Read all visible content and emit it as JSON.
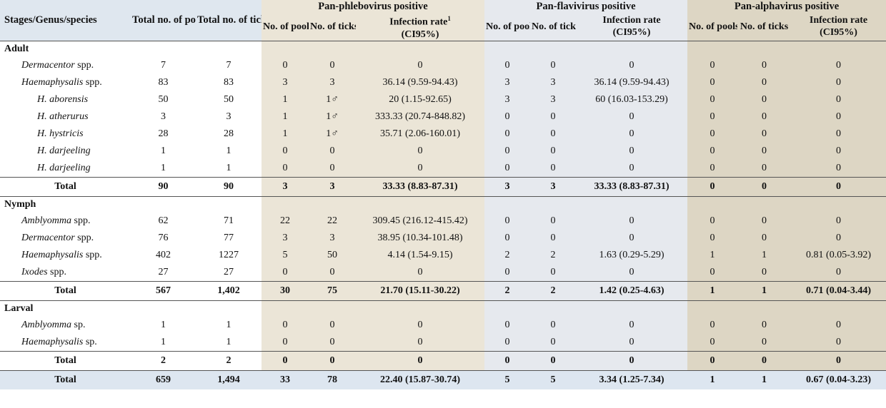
{
  "header": {
    "stage_label": "Stages/Genus/species",
    "total_pools": "Total no. of pools",
    "total_ticks": "Total no. of ticks",
    "groups": [
      {
        "title": "Pan-phlebovirus positive",
        "pools": "No. of pools",
        "ticks": "No. of ticks",
        "rate": "Infection rate",
        "rate_sup": "1",
        "ci": "(CI95%)"
      },
      {
        "title": "Pan-flavivirus positive",
        "pools": "No. of pools",
        "ticks": "No. of ticks",
        "rate": "Infection rate",
        "rate_sup": "",
        "ci": "(CI95%)"
      },
      {
        "title": "Pan-alphavirus positive",
        "pools": "No. of pools",
        "ticks": "No. of ticks",
        "rate": "Infection rate",
        "rate_sup": "",
        "ci": "(CI95%)"
      }
    ]
  },
  "sections": [
    {
      "label": "Adult",
      "rows": [
        {
          "italic": "Dermacentor",
          "plain": " spp.",
          "level": 1,
          "v": [
            "7",
            "7",
            "0",
            "0",
            "0",
            "0",
            "0",
            "0",
            "0",
            "0",
            "0"
          ]
        },
        {
          "italic": "Haemaphysalis",
          "plain": " spp.",
          "level": 1,
          "v": [
            "83",
            "83",
            "3",
            "3",
            "36.14 (9.59-94.43)",
            "3",
            "3",
            "36.14 (9.59-94.43)",
            "0",
            "0",
            "0"
          ]
        },
        {
          "italic": "H. aborensis",
          "plain": "",
          "level": 2,
          "v": [
            "50",
            "50",
            "1",
            "1♂",
            "20 (1.15-92.65)",
            "3",
            "3",
            "60 (16.03-153.29)",
            "0",
            "0",
            "0"
          ]
        },
        {
          "italic": "H. atherurus",
          "plain": "",
          "level": 2,
          "v": [
            "3",
            "3",
            "1",
            "1♂",
            "333.33 (20.74-848.82)",
            "0",
            "0",
            "0",
            "0",
            "0",
            "0"
          ]
        },
        {
          "italic": "H. hystricis",
          "plain": "",
          "level": 2,
          "v": [
            "28",
            "28",
            "1",
            "1♂",
            "35.71 (2.06-160.01)",
            "0",
            "0",
            "0",
            "0",
            "0",
            "0"
          ]
        },
        {
          "italic": "H. darjeeling",
          "plain": "",
          "level": 2,
          "v": [
            "1",
            "1",
            "0",
            "0",
            "0",
            "0",
            "0",
            "0",
            "0",
            "0",
            "0"
          ]
        },
        {
          "italic": "H. darjeeling",
          "plain": "",
          "level": 2,
          "v": [
            "1",
            "1",
            "0",
            "0",
            "0",
            "0",
            "0",
            "0",
            "0",
            "0",
            "0"
          ]
        }
      ],
      "total": {
        "label": "Total",
        "v": [
          "90",
          "90",
          "3",
          "3",
          "33.33 (8.83-87.31)",
          "3",
          "3",
          "33.33 (8.83-87.31)",
          "0",
          "0",
          "0"
        ]
      }
    },
    {
      "label": "Nymph",
      "rows": [
        {
          "italic": "Amblyomma",
          "plain": " spp.",
          "level": 1,
          "v": [
            "62",
            "71",
            "22",
            "22",
            "309.45 (216.12-415.42)",
            "0",
            "0",
            "0",
            "0",
            "0",
            "0"
          ]
        },
        {
          "italic": "Dermacentor",
          "plain": " spp.",
          "level": 1,
          "v": [
            "76",
            "77",
            "3",
            "3",
            "38.95 (10.34-101.48)",
            "0",
            "0",
            "0",
            "0",
            "0",
            "0"
          ]
        },
        {
          "italic": "Haemaphysalis",
          "plain": " spp.",
          "level": 1,
          "v": [
            "402",
            "1227",
            "5",
            "50",
            "4.14 (1.54-9.15)",
            "2",
            "2",
            "1.63 (0.29-5.29)",
            "1",
            "1",
            "0.81 (0.05-3.92)"
          ]
        },
        {
          "italic": "Ixodes",
          "plain": " spp.",
          "level": 1,
          "v": [
            "27",
            "27",
            "0",
            "0",
            "0",
            "0",
            "0",
            "0",
            "0",
            "0",
            "0"
          ]
        }
      ],
      "total": {
        "label": "Total",
        "v": [
          "567",
          "1,402",
          "30",
          "75",
          "21.70 (15.11-30.22)",
          "2",
          "2",
          "1.42 (0.25-4.63)",
          "1",
          "1",
          "0.71 (0.04-3.44)"
        ]
      }
    },
    {
      "label": "Larval",
      "rows": [
        {
          "italic": "Amblyomma",
          "plain": " sp.",
          "level": 1,
          "v": [
            "1",
            "1",
            "0",
            "0",
            "0",
            "0",
            "0",
            "0",
            "0",
            "0",
            "0"
          ]
        },
        {
          "italic": "Haemaphysalis",
          "plain": " sp.",
          "level": 1,
          "v": [
            "1",
            "1",
            "0",
            "0",
            "0",
            "0",
            "0",
            "0",
            "0",
            "0",
            "0"
          ]
        }
      ],
      "total": {
        "label": "Total",
        "v": [
          "2",
          "2",
          "0",
          "0",
          "0",
          "0",
          "0",
          "0",
          "0",
          "0",
          "0"
        ]
      }
    }
  ],
  "grand_total": {
    "label": "Total",
    "v": [
      "659",
      "1,494",
      "33",
      "78",
      "22.40 (15.87-30.74)",
      "5",
      "5",
      "3.34 (1.25-7.34)",
      "1",
      "1",
      "0.67 (0.04-3.23)"
    ]
  },
  "colors": {
    "header_left": "#dfe7ef",
    "phlebo_band": "#ebe5d7",
    "flavi_band": "#e6e9ee",
    "alpha_band": "#ddd6c4",
    "grand_total_row": "#dde6f0"
  }
}
